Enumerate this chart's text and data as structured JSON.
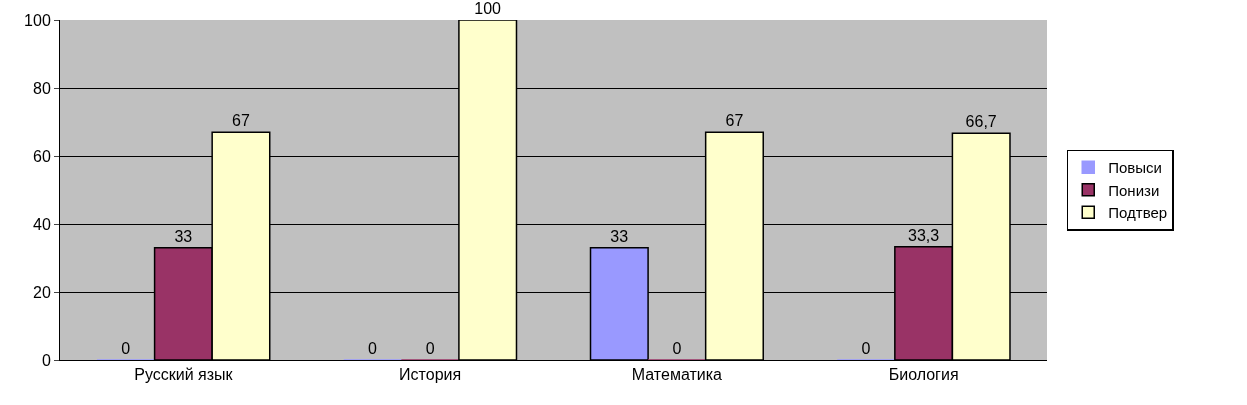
{
  "chart_data": {
    "type": "bar",
    "categories": [
      "Русский язык",
      "История",
      "Математика",
      "Биология"
    ],
    "series": [
      {
        "name": "Повыси",
        "color": "#9999ff",
        "values": [
          0,
          0,
          33,
          0
        ],
        "value_labels": [
          "0",
          "0",
          "33",
          "0"
        ]
      },
      {
        "name": "Понизи",
        "color": "#993366",
        "values": [
          33,
          0,
          0,
          33.3
        ],
        "value_labels": [
          "33",
          "0",
          "0",
          "33,3"
        ]
      },
      {
        "name": "Подтвер",
        "color": "#ffffcc",
        "values": [
          67,
          100,
          67,
          66.7
        ],
        "value_labels": [
          "67",
          "100",
          "67",
          "66,7"
        ]
      }
    ],
    "ylim": [
      0,
      100
    ],
    "yticks": [
      0,
      20,
      40,
      60,
      80,
      100
    ],
    "grid": "y",
    "legend": "right"
  }
}
